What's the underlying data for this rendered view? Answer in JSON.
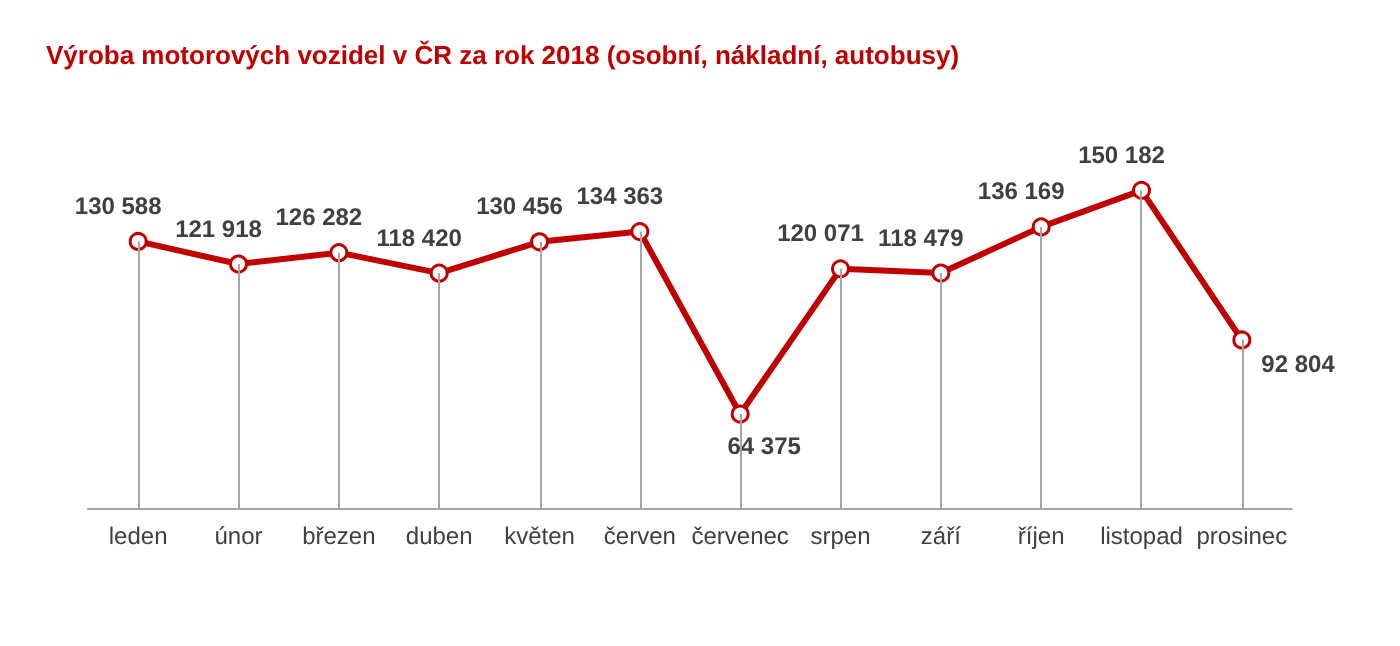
{
  "chart_data": {
    "type": "line",
    "title": "Výroba motorových vozidel v ČR za rok 2018 (osobní, nákladní, autobusy)",
    "categories": [
      "leden",
      "únor",
      "březen",
      "duben",
      "květen",
      "červen",
      "červenec",
      "srpen",
      "září",
      "říjen",
      "listopad",
      "prosinec"
    ],
    "series": [
      {
        "color": "#c00000",
        "values": [
          130588,
          121918,
          126282,
          118420,
          130456,
          134363,
          64375,
          120071,
          118479,
          136169,
          150182,
          92804
        ]
      }
    ],
    "data_labels": true,
    "marker": "circle",
    "line_style": "solid",
    "grid": "x",
    "tick_labels": "x"
  }
}
